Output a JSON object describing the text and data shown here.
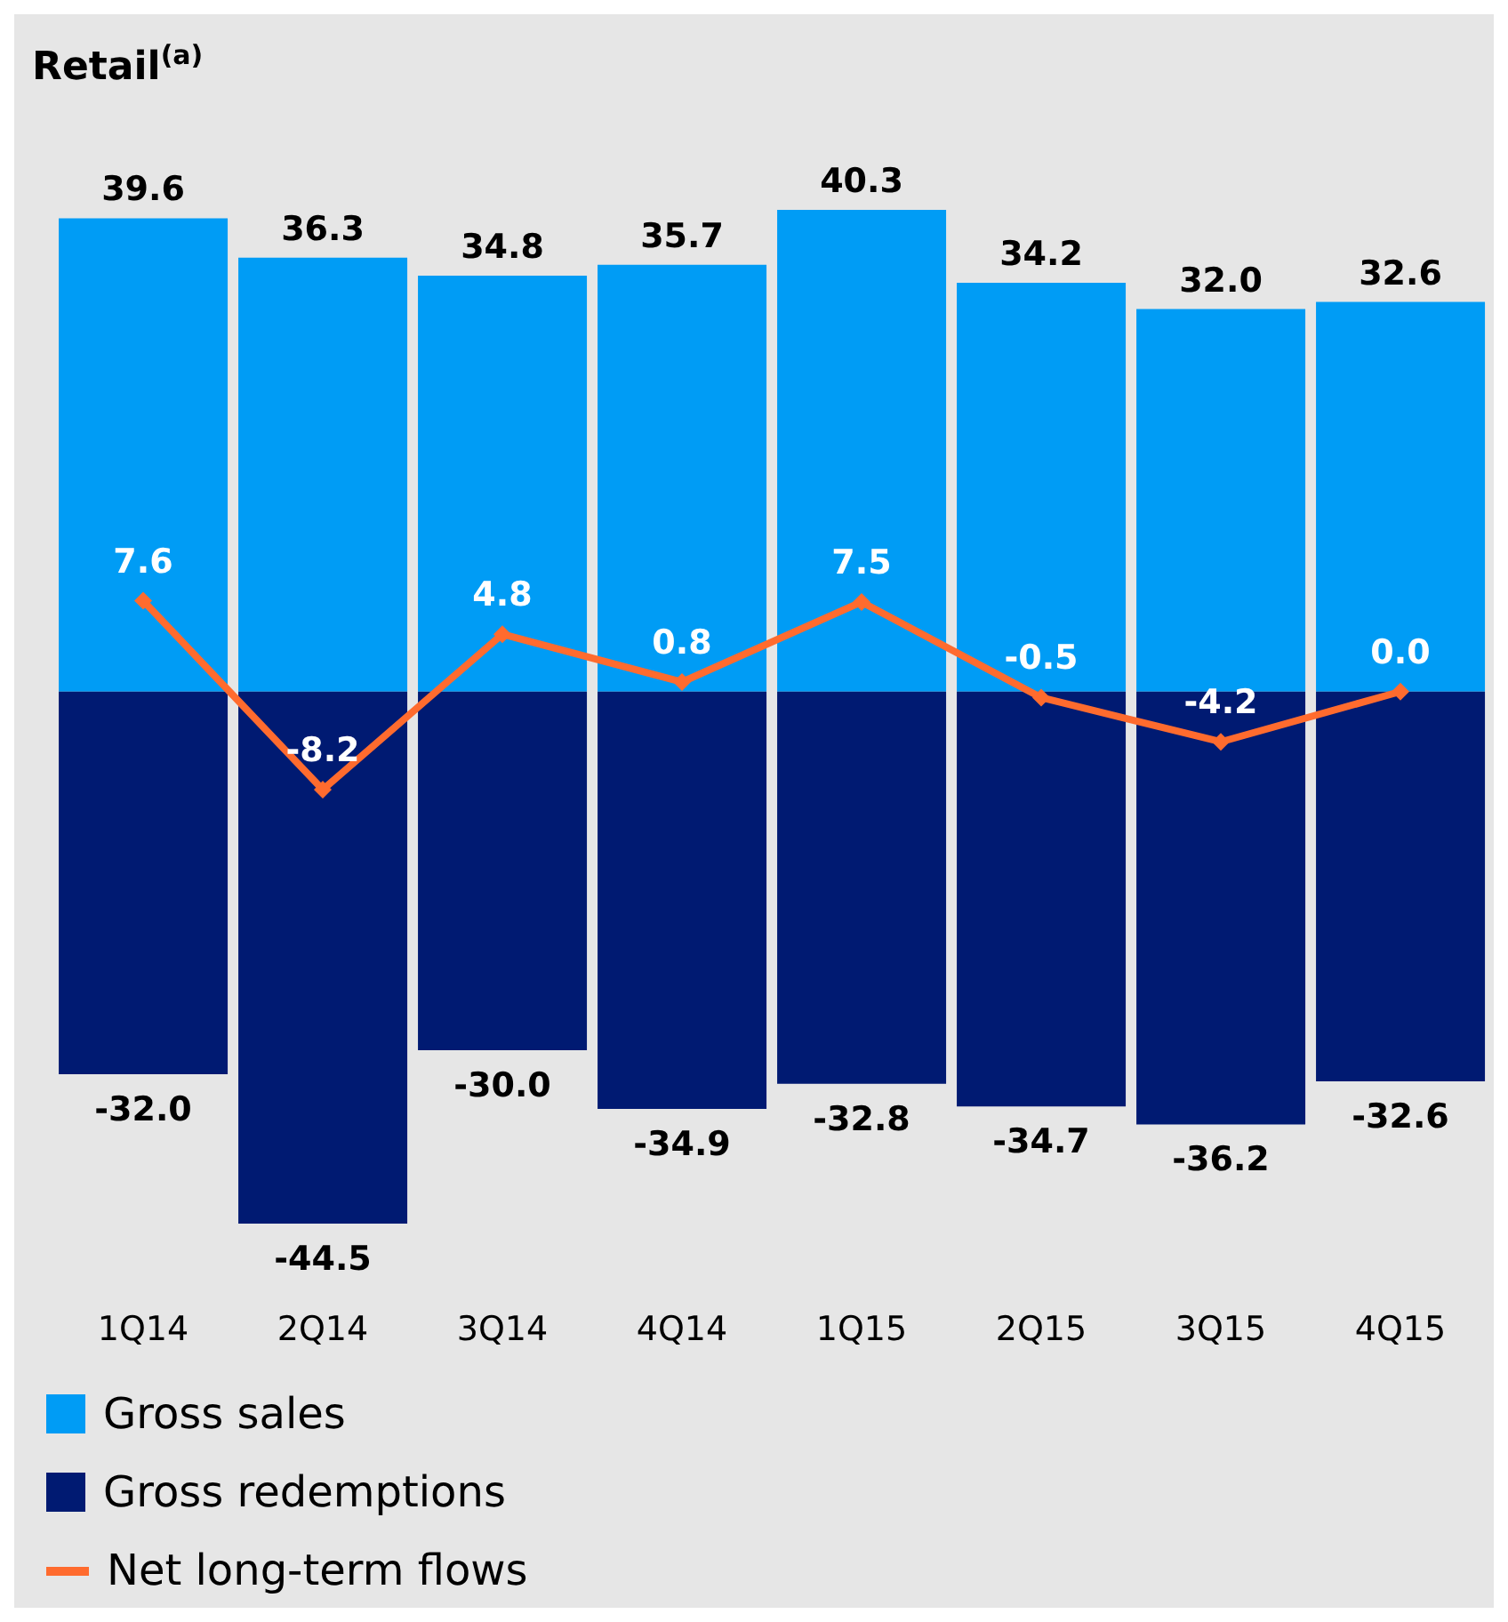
{
  "chart_data": {
    "type": "bar",
    "title": "Retail$^{(a)}$",
    "categories": [
      "1Q14",
      "2Q14",
      "3Q14",
      "4Q14",
      "1Q15",
      "2Q15",
      "3Q15",
      "4Q15"
    ],
    "stacked": true,
    "legend": "bottom",
    "series": [
      {
        "name": "Gross sales",
        "color": "#009cf5",
        "values": [
          39.6,
          36.3,
          34.8,
          35.7,
          40.3,
          34.2,
          32.0,
          32.6
        ],
        "value_labels": [
          "39.6",
          "36.3",
          "34.8",
          "35.7",
          "40.3",
          "34.2",
          "32.0",
          "32.6"
        ]
      },
      {
        "name": "Gross redemptions",
        "color": "#001a72",
        "values": [
          -32.0,
          -44.5,
          -30.0,
          -34.9,
          -32.8,
          -34.7,
          -36.2,
          -32.6
        ],
        "value_labels": [
          "-32.0",
          "-44.5",
          "-30.0",
          "-34.9",
          "-32.8",
          "-34.7",
          "-36.2",
          "-32.6"
        ]
      },
      {
        "name": "Net long-term flows",
        "type": "line",
        "color": "#ff6b2e",
        "marker": "diamond",
        "values": [
          7.6,
          -8.2,
          4.8,
          0.8,
          7.5,
          -0.5,
          -4.2,
          0.0
        ],
        "value_labels": [
          "7.6",
          "-8.2",
          "4.8",
          "0.8",
          "7.5",
          "-0.5",
          "-4.2",
          "0.0"
        ]
      }
    ]
  }
}
